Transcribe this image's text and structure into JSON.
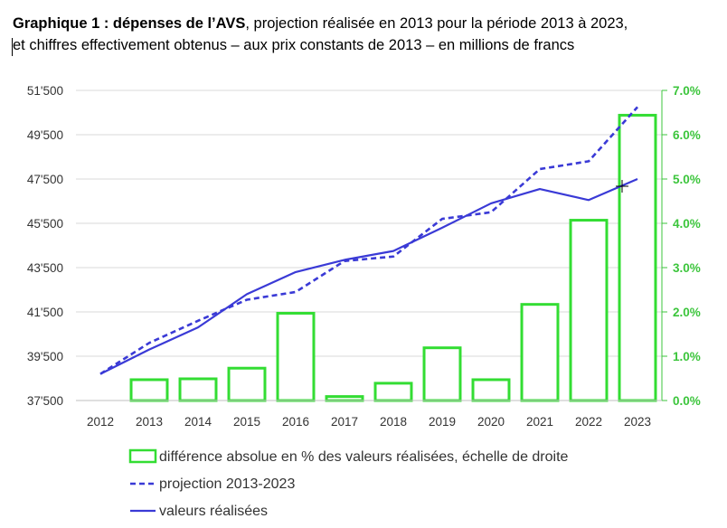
{
  "title": {
    "bold": "Graphique 1 : dépenses de l’AVS",
    "rest_line1": ", projection réalisée en 2013 pour la période 2013 à 2023,",
    "line2": "et chiffres effectivement obtenus – aux prix constants de 2013 – en millions de francs"
  },
  "colors": {
    "bars": "#33dd33",
    "right_axis": "#3cc53c",
    "projection": "#3a3ad6",
    "realized": "#3a3ad6",
    "grid": "#d9d9d9"
  },
  "chart_data": {
    "type": "bar+line",
    "categories": [
      "2012",
      "2013",
      "2014",
      "2015",
      "2016",
      "2017",
      "2018",
      "2019",
      "2020",
      "2021",
      "2022",
      "2023"
    ],
    "left_axis": {
      "ticks": [
        "37'500",
        "39'500",
        "41'500",
        "43'500",
        "45'500",
        "47'500",
        "49'500",
        "51'500"
      ],
      "ylim": [
        37500,
        51500
      ]
    },
    "right_axis": {
      "ticks": [
        "0.0%",
        "1.0%",
        "2.0%",
        "3.0%",
        "4.0%",
        "5.0%",
        "6.0%",
        "7.0%"
      ],
      "ylim": [
        0,
        7
      ]
    },
    "series": [
      {
        "name": "différence absolue en % des valeurs réalisées, échelle de droite",
        "type": "bar",
        "axis": "right",
        "values": [
          null,
          0.47,
          0.49,
          0.73,
          1.97,
          0.09,
          0.39,
          1.19,
          0.47,
          2.17,
          4.07,
          6.44
        ]
      },
      {
        "name": "projection 2013-2023",
        "type": "line",
        "style": "dashed",
        "axis": "left",
        "values": [
          38700,
          40100,
          41100,
          42050,
          42400,
          43800,
          44000,
          45700,
          46000,
          47950,
          48300,
          50750
        ]
      },
      {
        "name": "valeurs réalisées",
        "type": "line",
        "style": "solid",
        "axis": "left",
        "values": [
          38700,
          39800,
          40800,
          42300,
          43300,
          43850,
          44250,
          45300,
          46400,
          47050,
          46550,
          47500
        ]
      }
    ],
    "legend_position": "bottom"
  }
}
